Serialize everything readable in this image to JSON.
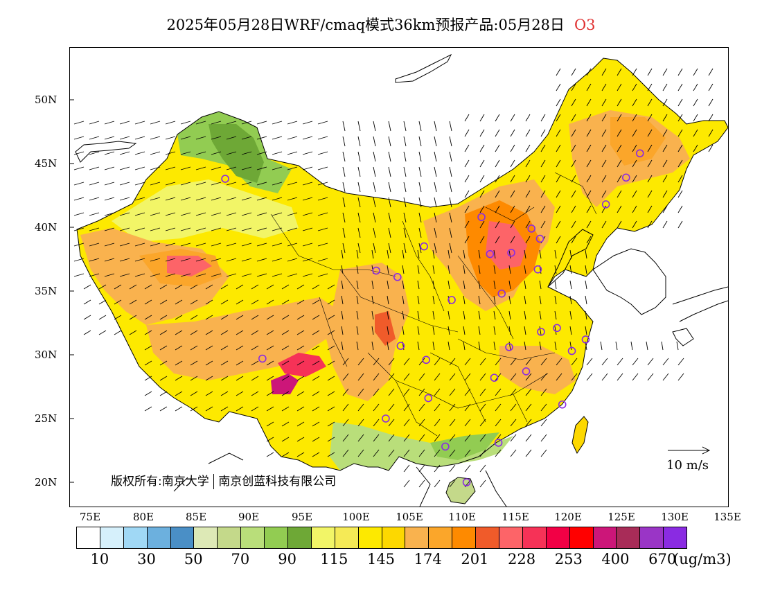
{
  "title": {
    "text": "2025年05月28日WRF/cmaq模式36km预报产品:05月28日",
    "species": "O3"
  },
  "copyright": {
    "part1": "版权所有:南京大学",
    "part2": "南京创蓝科技有限公司"
  },
  "reference_vector": {
    "label": "10 m/s",
    "speed": 10
  },
  "axes": {
    "lat_labels": [
      "50N",
      "45N",
      "40N",
      "35N",
      "30N",
      "25N",
      "20N"
    ],
    "lat_values": [
      50,
      45,
      40,
      35,
      30,
      25,
      20
    ],
    "lon_labels": [
      "75E",
      "80E",
      "85E",
      "90E",
      "95E",
      "100E",
      "105E",
      "110E",
      "115E",
      "120E",
      "125E",
      "130E",
      "135E"
    ],
    "lon_values": [
      75,
      80,
      85,
      90,
      95,
      100,
      105,
      110,
      115,
      120,
      125,
      130,
      135
    ]
  },
  "colorbar": {
    "unit": "(ug/m3)",
    "colors": [
      "#ffffff",
      "#d6f0fb",
      "#a0d8f5",
      "#6cb0de",
      "#4a8fc6",
      "#dde9b6",
      "#c4d98a",
      "#b9de7a",
      "#92cc52",
      "#6ea836",
      "#f2f567",
      "#f5ea56",
      "#fde900",
      "#fdd800",
      "#f9b24e",
      "#fba62a",
      "#fe8a00",
      "#f05b2a",
      "#fd6468",
      "#f63257",
      "#f20045",
      "#ff0000",
      "#cc1679",
      "#a82c58",
      "#9a35c6",
      "#8a2be2"
    ],
    "labels": [
      "10",
      "30",
      "50",
      "70",
      "90",
      "115",
      "145",
      "174",
      "201",
      "228",
      "253",
      "400",
      "670"
    ]
  },
  "stations": [
    {
      "lon": 87.6,
      "lat": 43.8
    },
    {
      "lon": 91.1,
      "lat": 29.7
    },
    {
      "lon": 101.8,
      "lat": 36.6
    },
    {
      "lon": 103.8,
      "lat": 36.1
    },
    {
      "lon": 106.3,
      "lat": 38.5
    },
    {
      "lon": 108.9,
      "lat": 34.3
    },
    {
      "lon": 111.7,
      "lat": 40.8
    },
    {
      "lon": 112.5,
      "lat": 37.9
    },
    {
      "lon": 114.5,
      "lat": 38.0
    },
    {
      "lon": 116.4,
      "lat": 39.9
    },
    {
      "lon": 117.2,
      "lat": 39.1
    },
    {
      "lon": 113.6,
      "lat": 34.8
    },
    {
      "lon": 117.0,
      "lat": 36.7
    },
    {
      "lon": 104.1,
      "lat": 30.7
    },
    {
      "lon": 106.5,
      "lat": 29.6
    },
    {
      "lon": 114.3,
      "lat": 30.6
    },
    {
      "lon": 117.3,
      "lat": 31.8
    },
    {
      "lon": 118.8,
      "lat": 32.1
    },
    {
      "lon": 120.2,
      "lat": 30.3
    },
    {
      "lon": 121.5,
      "lat": 31.2
    },
    {
      "lon": 112.9,
      "lat": 28.2
    },
    {
      "lon": 115.9,
      "lat": 28.7
    },
    {
      "lon": 119.3,
      "lat": 26.1
    },
    {
      "lon": 106.7,
      "lat": 26.6
    },
    {
      "lon": 102.7,
      "lat": 25.0
    },
    {
      "lon": 108.3,
      "lat": 22.8
    },
    {
      "lon": 113.3,
      "lat": 23.1
    },
    {
      "lon": 110.3,
      "lat": 20.0
    },
    {
      "lon": 123.4,
      "lat": 41.8
    },
    {
      "lon": 125.3,
      "lat": 43.9
    },
    {
      "lon": 126.6,
      "lat": 45.8
    }
  ]
}
